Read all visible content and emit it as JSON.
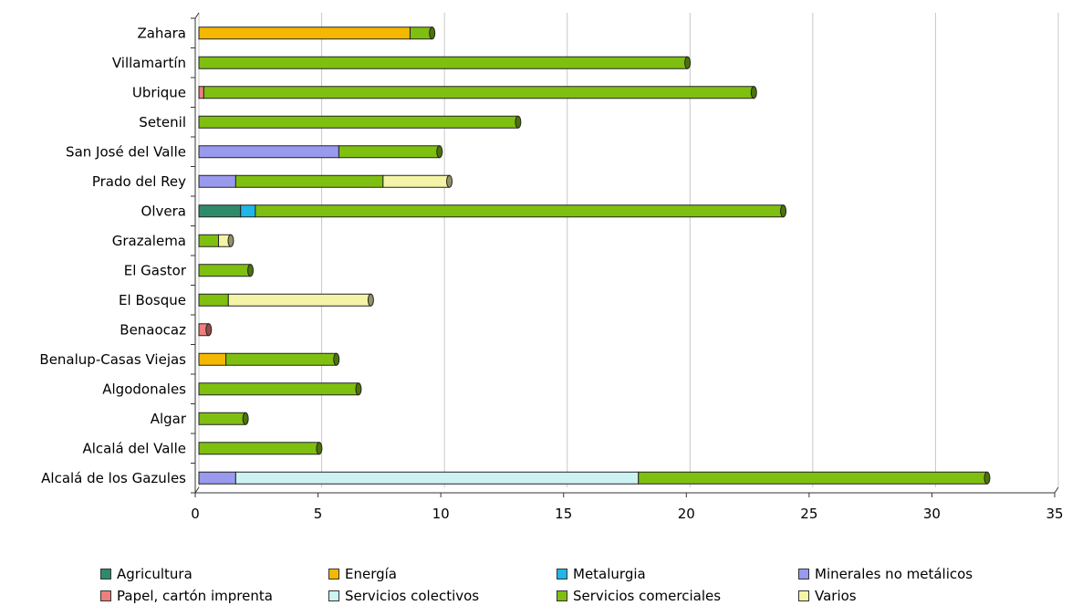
{
  "chart_data": {
    "type": "bar",
    "orientation": "horizontal",
    "stacked": true,
    "categories": [
      "Zahara",
      "Villamartín",
      "Ubrique",
      "Setenil",
      "San José del Valle",
      "Prado del Rey",
      "Olvera",
      "Grazalema",
      "El Gastor",
      "El Bosque",
      "Benaocaz",
      "Benalup-Casas Viejas",
      "Algodonales",
      "Algar",
      "Alcalá del Valle",
      "Alcalá de los Gazules"
    ],
    "series": [
      {
        "name": "Agricultura",
        "color": "#2e8b6a",
        "values": [
          0,
          0,
          0,
          0,
          0,
          0,
          1.7,
          0,
          0,
          0,
          0,
          0,
          0,
          0,
          0,
          0
        ]
      },
      {
        "name": "Energía",
        "color": "#f5b800",
        "values": [
          8.6,
          0,
          0,
          0,
          0,
          0,
          0,
          0,
          0,
          0,
          0,
          1.1,
          0,
          0,
          0,
          0
        ]
      },
      {
        "name": "Metalurgia",
        "color": "#1fb6e8",
        "values": [
          0,
          0,
          0,
          0,
          0,
          0,
          0.6,
          0,
          0,
          0,
          0,
          0,
          0,
          0,
          0,
          0
        ]
      },
      {
        "name": "Minerales no metálicos",
        "color": "#9999ee",
        "values": [
          0,
          0,
          0,
          0,
          5.7,
          1.5,
          0,
          0,
          0,
          0,
          0,
          0,
          0,
          0,
          0,
          1.5
        ]
      },
      {
        "name": "Papel, cartón imprenta",
        "color": "#ee7f7f",
        "values": [
          0,
          0,
          0.2,
          0,
          0,
          0,
          0,
          0,
          0,
          0,
          0.4,
          0,
          0,
          0,
          0,
          0
        ]
      },
      {
        "name": "Servicios colectivos",
        "color": "#ccf2f2",
        "values": [
          0,
          0,
          0,
          0,
          0,
          0,
          0,
          0,
          0,
          0,
          0,
          0,
          0,
          0,
          0,
          16.4
        ]
      },
      {
        "name": "Servicios comerciales",
        "color": "#7fbf10",
        "values": [
          0.9,
          19.9,
          22.4,
          13.0,
          4.1,
          6.0,
          21.5,
          0.8,
          2.1,
          1.2,
          0,
          4.5,
          6.5,
          1.9,
          4.9,
          14.2
        ]
      },
      {
        "name": "Varios",
        "color": "#f4f4a8",
        "values": [
          0,
          0,
          0,
          0,
          0,
          2.7,
          0,
          0.5,
          0,
          5.8,
          0,
          0,
          0,
          0,
          0,
          0
        ]
      }
    ],
    "xlim": [
      0,
      35
    ],
    "xticks": [
      "0",
      "5",
      "10",
      "15",
      "20",
      "25",
      "30",
      "35"
    ],
    "grid": true,
    "legend_position": "bottom"
  }
}
